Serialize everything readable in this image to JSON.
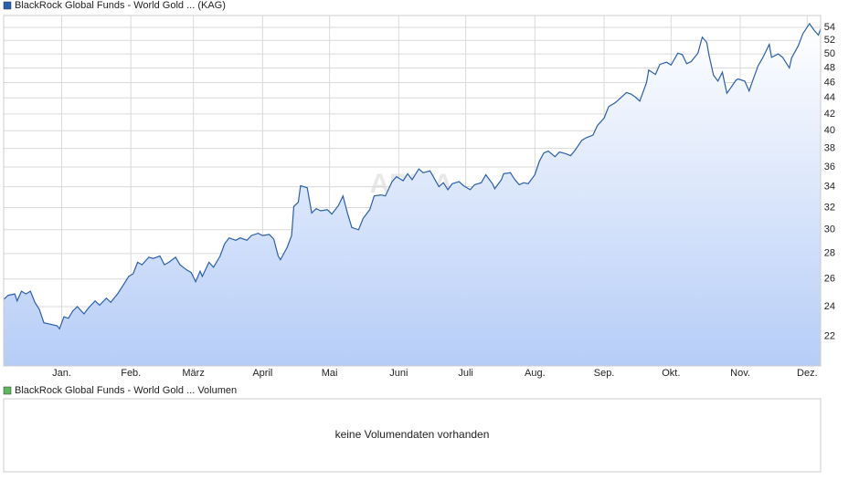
{
  "chart_data": [
    {
      "type": "line",
      "yscale": "log",
      "grid": true,
      "series": [
        {
          "name": "BlackRock Global Funds - World Gold ... (KAG)",
          "color": "#2a5fac",
          "x": [
            -26,
            -24,
            -21,
            -20,
            -18,
            -16,
            -14,
            -12,
            -10,
            -8,
            -5,
            -2,
            -1,
            1,
            3,
            5,
            7,
            10,
            12,
            15,
            17,
            20,
            22,
            25,
            27,
            30,
            32,
            34,
            36,
            39,
            41,
            44,
            46,
            48,
            51,
            53,
            56,
            58,
            60,
            62,
            63,
            66,
            68,
            71,
            73,
            75,
            78,
            80,
            83,
            85,
            88,
            90,
            93,
            95,
            97,
            98,
            101,
            103,
            104,
            106,
            107,
            110,
            112,
            114,
            116,
            119,
            121,
            124,
            126,
            128,
            130,
            133,
            135,
            138,
            140,
            143,
            145,
            148,
            150,
            153,
            155,
            157,
            160,
            162,
            165,
            167,
            169,
            171,
            173,
            175,
            178,
            180,
            183,
            185,
            188,
            190,
            193,
            194,
            197,
            198,
            201,
            203,
            205,
            207,
            209,
            212,
            214,
            216,
            218,
            221,
            223,
            226,
            228,
            230,
            233,
            235,
            238,
            240,
            243,
            245,
            248,
            250,
            253,
            255,
            257,
            259,
            262,
            263,
            266,
            268,
            271,
            273,
            276,
            278,
            280,
            282,
            285,
            287,
            289,
            290,
            292,
            294,
            296,
            298,
            299,
            302,
            303,
            306,
            308,
            309,
            312,
            314,
            317,
            318,
            321,
            323,
            326,
            327,
            330,
            332,
            335,
            337,
            339,
            340
          ],
          "values": [
            24.5,
            24.8,
            24.9,
            24.4,
            25.1,
            24.9,
            25.1,
            24.3,
            23.8,
            22.9,
            22.8,
            22.7,
            22.5,
            23.3,
            23.2,
            23.7,
            24.0,
            23.5,
            23.9,
            24.4,
            24.1,
            24.6,
            24.3,
            24.9,
            25.4,
            26.2,
            26.4,
            27.3,
            27.1,
            27.7,
            27.6,
            27.8,
            27.1,
            27.3,
            27.7,
            27.1,
            26.7,
            26.5,
            25.8,
            26.6,
            26.2,
            27.3,
            26.9,
            27.8,
            28.8,
            29.3,
            29.1,
            29.3,
            29.1,
            29.5,
            29.7,
            29.5,
            29.6,
            29.2,
            27.8,
            27.5,
            28.5,
            29.5,
            32.1,
            32.5,
            34.1,
            33.9,
            31.5,
            31.9,
            31.7,
            31.8,
            31.4,
            32.2,
            33.1,
            31.5,
            30.2,
            30.0,
            31.0,
            31.8,
            33.1,
            33.2,
            33.1,
            34.5,
            35.0,
            34.6,
            35.3,
            34.7,
            35.8,
            35.4,
            35.6,
            34.8,
            34.0,
            34.4,
            33.7,
            34.3,
            34.5,
            34.1,
            33.7,
            34.2,
            34.4,
            35.2,
            34.3,
            33.8,
            34.7,
            35.3,
            35.4,
            34.7,
            34.2,
            34.4,
            34.3,
            35.2,
            36.6,
            37.5,
            37.7,
            37.1,
            37.6,
            37.4,
            37.2,
            37.8,
            38.9,
            39.2,
            39.5,
            40.6,
            41.5,
            42.9,
            43.4,
            43.9,
            44.7,
            44.5,
            44.1,
            43.6,
            46.0,
            47.7,
            47.1,
            48.5,
            48.8,
            48.4,
            50.1,
            49.9,
            48.6,
            48.9,
            50.1,
            52.5,
            51.7,
            49.8,
            47.0,
            46.2,
            47.4,
            44.6,
            45.0,
            46.3,
            46.5,
            46.2,
            44.9,
            45.8,
            48.3,
            49.4,
            51.4,
            49.5,
            50.0,
            49.5,
            48.0,
            49.4,
            51.2,
            53.0,
            54.6,
            53.6,
            52.8,
            53.8
          ]
        }
      ],
      "xlim": [
        -26,
        340
      ],
      "xticks": [
        {
          "value": 0,
          "label": "Jan."
        },
        {
          "value": 31,
          "label": "Feb."
        },
        {
          "value": 59,
          "label": "März"
        },
        {
          "value": 90,
          "label": "April"
        },
        {
          "value": 120,
          "label": "Mai"
        },
        {
          "value": 151,
          "label": "Juni"
        },
        {
          "value": 181,
          "label": "Juli"
        },
        {
          "value": 212,
          "label": "Aug."
        },
        {
          "value": 243,
          "label": "Sep."
        },
        {
          "value": 273,
          "label": "Okt."
        },
        {
          "value": 304,
          "label": "Nov."
        },
        {
          "value": 334,
          "label": "Dez."
        }
      ],
      "ylim": [
        20.2,
        55.9
      ],
      "yticks": [
        22,
        24,
        26,
        28,
        30,
        32,
        34,
        36,
        38,
        40,
        42,
        44,
        46,
        48,
        50,
        52,
        54
      ],
      "watermark": "ARIVA"
    },
    {
      "type": "bar",
      "series": [
        {
          "name": "BlackRock Global Funds - World Gold ... Volumen",
          "color": "#5cb85c"
        }
      ],
      "message": "keine Volumendaten vorhanden"
    }
  ]
}
